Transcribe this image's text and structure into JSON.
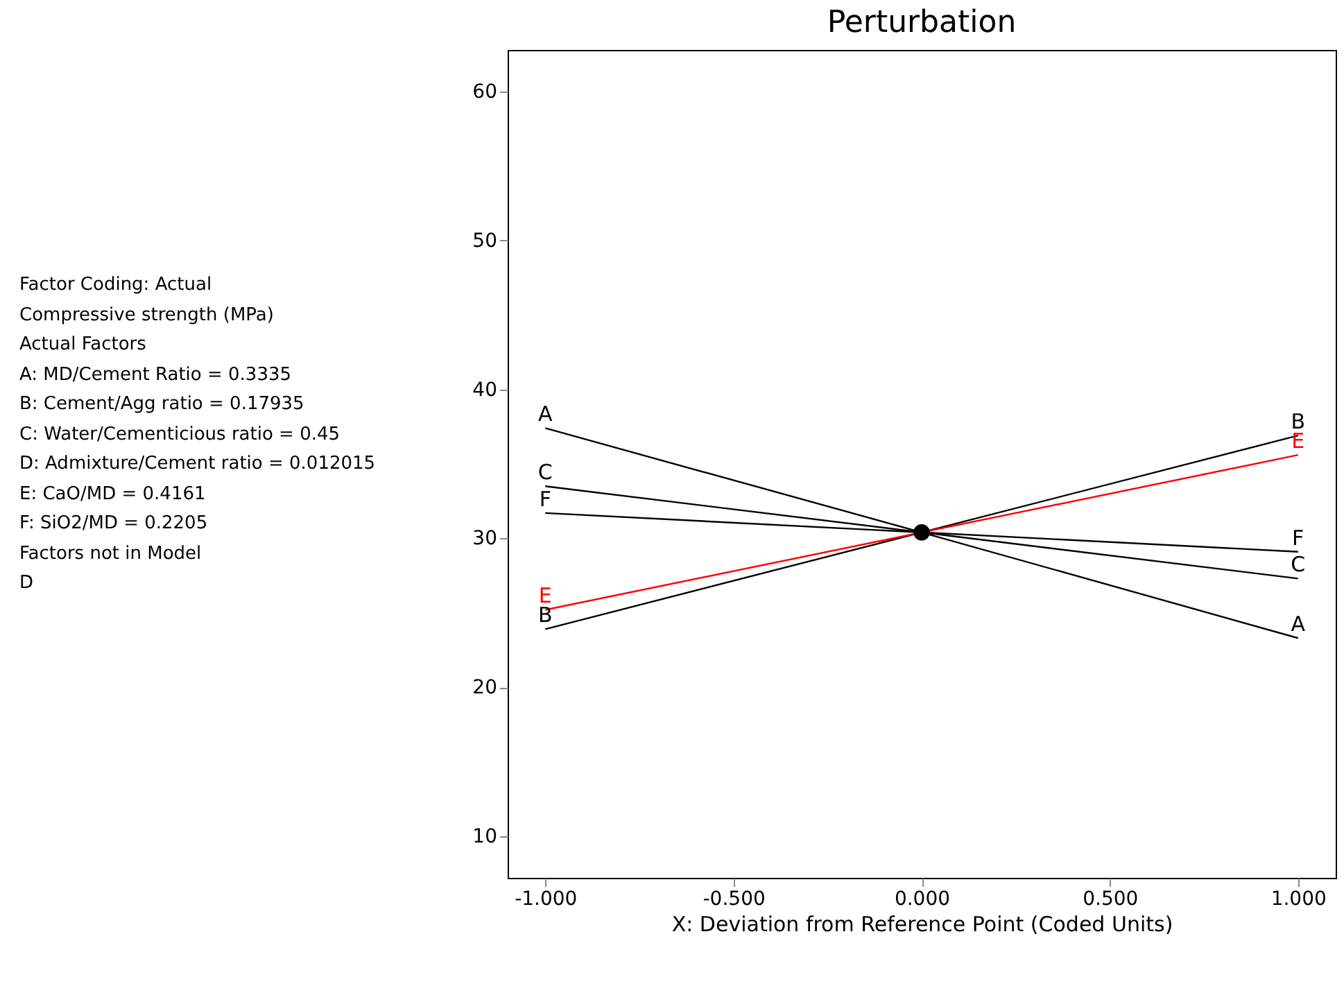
{
  "chart_data": {
    "type": "line",
    "title": "Perturbation",
    "xlabel": "X: Deviation from Reference Point (Coded Units)",
    "x": [
      -1,
      0,
      1
    ],
    "series": [
      {
        "name": "A",
        "color": "#000000",
        "values": [
          37.4,
          30.4,
          23.3
        ]
      },
      {
        "name": "B",
        "color": "#000000",
        "values": [
          23.9,
          30.4,
          36.9
        ]
      },
      {
        "name": "C",
        "color": "#000000",
        "values": [
          33.5,
          30.4,
          27.3
        ]
      },
      {
        "name": "E",
        "color": "#ff0000",
        "values": [
          25.2,
          30.4,
          35.6
        ]
      },
      {
        "name": "F",
        "color": "#000000",
        "values": [
          31.7,
          30.4,
          29.1
        ]
      },
      {
        "type": "scatter",
        "color": "#000000",
        "x": [
          0
        ],
        "values": [
          30.4
        ],
        "marker": "circle"
      }
    ],
    "xlim": [
      -1.1,
      1.1
    ],
    "ylim": [
      7.2,
      62.8
    ],
    "xticks": [
      {
        "value": -1,
        "label": "-1.000"
      },
      {
        "value": -0.5,
        "label": "-0.500"
      },
      {
        "value": 0,
        "label": "0.000"
      },
      {
        "value": 0.5,
        "label": "0.500"
      },
      {
        "value": 1,
        "label": "1.000"
      }
    ],
    "yticks": [
      10,
      20,
      30,
      40,
      50,
      60
    ],
    "grid": false,
    "line_style": "solid",
    "annotations": [
      "Factor Coding: Actual",
      "Compressive strength (MPa)",
      "Actual Factors",
      "A: MD/Cement Ratio = 0.3335",
      "B: Cement/Agg ratio = 0.17935",
      "C: Water/Cementicious ratio = 0.45",
      "D: Admixture/Cement ratio = 0.012015",
      "E: CaO/MD = 0.4161",
      "F: SiO2/MD = 0.2205",
      "Factors not in Model",
      "D"
    ]
  }
}
